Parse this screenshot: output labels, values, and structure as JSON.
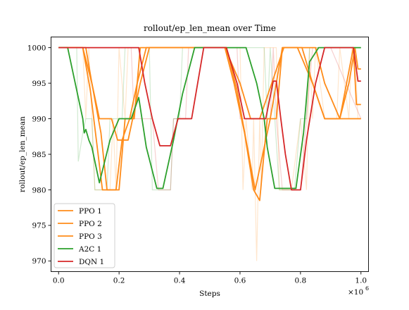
{
  "chart_data": {
    "type": "line",
    "title": "rollout/ep_len_mean over Time",
    "xlabel": "Steps",
    "ylabel": "rollout/ep_len_mean",
    "x_multiplier_label": "×10",
    "x_multiplier_exp": "6",
    "xlim": [
      -0.025,
      1.025
    ],
    "ylim": [
      968.5,
      1001.5
    ],
    "x_ticks": [
      0.0,
      0.2,
      0.4,
      0.6,
      0.8,
      1.0
    ],
    "x_tick_labels": [
      "0.0",
      "0.2",
      "0.4",
      "0.6",
      "0.8",
      "1.0"
    ],
    "y_ticks": [
      970,
      975,
      980,
      985,
      990,
      995,
      1000
    ],
    "y_tick_labels": [
      "970",
      "975",
      "980",
      "985",
      "990",
      "995",
      "1000"
    ],
    "legend_position": "lower-left",
    "grid": false,
    "series": [
      {
        "name": "PPO 1",
        "color": "#ff8c1a",
        "x": [
          0.0,
          0.08,
          0.11,
          0.135,
          0.175,
          0.195,
          0.23,
          0.27,
          0.3,
          0.33,
          0.55,
          0.6,
          0.635,
          0.665,
          0.705,
          0.745,
          0.79,
          0.84,
          0.88,
          0.91,
          0.945,
          0.98,
          1.0
        ],
        "y": [
          1000,
          1000,
          995,
          990,
          990,
          987,
          987,
          995,
          1000,
          1000,
          1000,
          995,
          990,
          990,
          995,
          1000,
          1000,
          995,
          990,
          990,
          990,
          990,
          990
        ]
      },
      {
        "name": "PPO 2",
        "color": "#ff8c1a",
        "x": [
          0.0,
          0.09,
          0.11,
          0.14,
          0.16,
          0.2,
          0.22,
          0.25,
          0.27,
          0.29,
          0.55,
          0.58,
          0.615,
          0.645,
          0.665,
          0.69,
          0.72,
          0.74,
          0.78,
          0.805,
          0.84,
          0.88,
          0.93,
          0.975,
          0.985,
          1.0
        ],
        "y": [
          1000,
          1000,
          995,
          988,
          980,
          980,
          990,
          990,
          1000,
          1000,
          1000,
          995,
          988,
          980,
          978.5,
          990,
          990,
          1000,
          1000,
          1000,
          995,
          990,
          990,
          1000,
          992,
          992
        ]
      },
      {
        "name": "PPO 3",
        "color": "#ff8c1a",
        "x": [
          0.0,
          0.08,
          0.105,
          0.125,
          0.145,
          0.19,
          0.21,
          0.235,
          0.26,
          0.29,
          0.555,
          0.59,
          0.62,
          0.65,
          0.675,
          0.7,
          0.72,
          0.74,
          0.78,
          0.81,
          0.85,
          0.88,
          0.93,
          0.96,
          0.98,
          0.99,
          1.0
        ],
        "y": [
          1000,
          1000,
          994,
          987,
          980,
          980,
          987,
          990,
          995,
          1000,
          1000,
          994,
          987,
          980,
          985,
          990,
          995,
          1000,
          1000,
          1000,
          1000,
          995,
          990,
          995,
          1000,
          997,
          997
        ]
      },
      {
        "name": "A2C 1",
        "color": "#2ca02c",
        "x": [
          0.0,
          0.03,
          0.06,
          0.08,
          0.085,
          0.09,
          0.1,
          0.11,
          0.135,
          0.17,
          0.2,
          0.24,
          0.265,
          0.29,
          0.325,
          0.345,
          0.38,
          0.41,
          0.45,
          0.55,
          0.62,
          0.655,
          0.68,
          0.69,
          0.715,
          0.745,
          0.785,
          0.81,
          0.83,
          0.86,
          0.9,
          1.0
        ],
        "y": [
          1000,
          1000,
          994,
          990,
          988,
          988.5,
          987,
          986,
          981,
          987,
          990,
          990,
          993,
          986,
          980.2,
          980.2,
          987,
          993.5,
          1000,
          1000,
          1000,
          995,
          990,
          986,
          980.2,
          980.2,
          980.2,
          988,
          998,
          1000,
          1000,
          1000
        ]
      },
      {
        "name": "DQN 1",
        "color": "#d62728",
        "x": [
          0.0,
          0.23,
          0.265,
          0.285,
          0.31,
          0.335,
          0.37,
          0.395,
          0.42,
          0.44,
          0.48,
          0.54,
          0.555,
          0.59,
          0.615,
          0.655,
          0.685,
          0.71,
          0.72,
          0.735,
          0.75,
          0.77,
          0.8,
          0.82,
          0.85,
          0.88,
          0.92,
          0.955,
          0.975,
          0.99,
          1.0
        ],
        "y": [
          1000,
          1000,
          1000,
          995,
          990,
          986.2,
          986.2,
          990,
          990,
          990,
          1000,
          1000,
          1000,
          995,
          990,
          990,
          990,
          995.3,
          995.3,
          990,
          985,
          980,
          980,
          987,
          995,
          1000,
          1000,
          1000,
          1000,
          995.3,
          995.3
        ]
      }
    ],
    "raw_series": [
      {
        "color": "#ff8c1a",
        "x": [
          0.0,
          0.08,
          0.09,
          0.1,
          0.11,
          0.12,
          0.17,
          0.18,
          0.19,
          0.2,
          0.22,
          0.23,
          0.28,
          0.55,
          0.6,
          0.61,
          0.62,
          0.64,
          0.645,
          0.655,
          0.66,
          0.665,
          0.67,
          0.68,
          0.72,
          0.73,
          0.77,
          0.8,
          0.82,
          0.83,
          0.84,
          0.85,
          0.88,
          0.92,
          0.93,
          0.96,
          0.97,
          0.98,
          0.99,
          1.0
        ],
        "y": [
          1000,
          1000,
          990,
          1000,
          990,
          980,
          980,
          990,
          980,
          1000,
          990,
          1000,
          1000,
          1000,
          1000,
          980,
          990,
          980,
          990,
          970,
          980,
          990,
          980,
          1000,
          1000,
          980,
          980,
          990,
          980,
          1000,
          990,
          1000,
          990,
          990,
          1000,
          990,
          1000,
          1000,
          990,
          990
        ]
      },
      {
        "color": "#2ca02c",
        "x": [
          0.0,
          0.06,
          0.065,
          0.08,
          0.09,
          0.11,
          0.12,
          0.16,
          0.17,
          0.21,
          0.22,
          0.3,
          0.31,
          0.37,
          0.38,
          0.4,
          0.41,
          0.55,
          0.68,
          0.69,
          0.7,
          0.73,
          0.74,
          0.78,
          0.8,
          0.82,
          0.83,
          1.0
        ],
        "y": [
          1000,
          1000,
          984,
          988,
          990,
          990,
          980,
          980,
          990,
          990,
          1000,
          1000,
          980,
          980,
          990,
          990,
          1000,
          1000,
          1000,
          990,
          1000,
          980,
          980,
          980,
          990,
          990,
          1000,
          1000
        ]
      },
      {
        "color": "#d62728",
        "x": [
          0.0,
          0.24,
          0.25,
          0.3,
          0.31,
          0.33,
          0.34,
          0.37,
          0.38,
          0.42,
          0.43,
          0.55,
          0.59,
          0.6,
          0.7,
          0.71,
          0.72,
          0.74,
          0.75,
          0.78,
          0.8,
          0.82,
          0.84,
          0.9,
          1.0
        ],
        "y": [
          1000,
          1000,
          990,
          990,
          990,
          980,
          980,
          980,
          990,
          990,
          1000,
          1000,
          1000,
          990,
          990,
          1000,
          990,
          980,
          980,
          980,
          980,
          990,
          1000,
          1000,
          990
        ]
      }
    ]
  }
}
